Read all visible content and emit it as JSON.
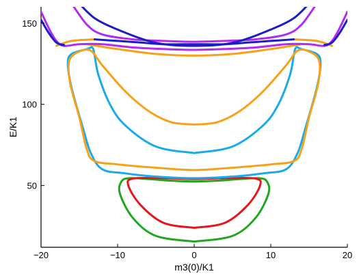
{
  "chart_data": {
    "type": "line",
    "xlabel": "m3(0)/K1",
    "ylabel": "E/K1",
    "xlim": [
      -20,
      20
    ],
    "ylim": [
      12,
      160
    ],
    "xticks": [
      -20,
      -10,
      0,
      10,
      20
    ],
    "yticks": [
      50,
      100,
      150
    ],
    "grid": false,
    "colors": {
      "green": "#1fa71f",
      "red": "#e8141c",
      "sky": "#18aaec",
      "orange": "#f7a11a",
      "violet": "#b12cf0",
      "navy": "#1d1dc8"
    },
    "series": [
      {
        "color_key": "green",
        "points": [
          [
            0,
            15.5
          ],
          [
            -5,
            19
          ],
          [
            -8,
            30
          ],
          [
            -9.7,
            45
          ],
          [
            -9.5,
            52.5
          ],
          [
            -8.5,
            54.5
          ],
          [
            -6,
            54
          ],
          [
            -3,
            53
          ],
          [
            0,
            52.5
          ],
          [
            3,
            53
          ],
          [
            6,
            54
          ],
          [
            8.5,
            54.5
          ],
          [
            9.5,
            52.5
          ],
          [
            9.7,
            45
          ],
          [
            8,
            30
          ],
          [
            5,
            19
          ],
          [
            0,
            15.5
          ]
        ]
      },
      {
        "color_key": "red",
        "points": [
          [
            0,
            24
          ],
          [
            -4,
            27
          ],
          [
            -7,
            38
          ],
          [
            -8.6,
            50
          ],
          [
            -8,
            54.3
          ],
          [
            -4,
            54.5
          ],
          [
            0,
            54
          ],
          [
            4,
            54.5
          ],
          [
            8,
            54.3
          ],
          [
            8.6,
            50
          ],
          [
            7,
            38
          ],
          [
            4,
            27
          ],
          [
            0,
            24
          ]
        ]
      },
      {
        "color_key": "sky",
        "points": [
          [
            0,
            70
          ],
          [
            -5,
            74
          ],
          [
            -9,
            87
          ],
          [
            -11,
            100
          ],
          [
            -12.5,
            118
          ],
          [
            -13,
            130
          ],
          [
            -13.3,
            135
          ],
          [
            -14,
            134
          ],
          [
            -16,
            131
          ],
          [
            -16.5,
            125
          ],
          [
            -16,
            110
          ],
          [
            -14.5,
            85
          ],
          [
            -13.5,
            70
          ],
          [
            -12,
            60
          ],
          [
            -9,
            57.5
          ],
          [
            -5,
            55.5
          ],
          [
            0,
            54.5
          ],
          [
            5,
            55.5
          ],
          [
            9,
            57.5
          ],
          [
            12,
            60
          ],
          [
            13.5,
            70
          ],
          [
            14.5,
            85
          ],
          [
            16,
            110
          ],
          [
            16.5,
            125
          ],
          [
            16,
            131
          ],
          [
            14,
            134
          ],
          [
            13.3,
            135
          ],
          [
            13,
            130
          ],
          [
            12.5,
            118
          ],
          [
            11,
            100
          ],
          [
            9,
            87
          ],
          [
            5,
            74
          ],
          [
            0,
            70
          ]
        ]
      },
      {
        "color_key": "orange",
        "points": [
          [
            0,
            87.5
          ],
          [
            -3,
            89
          ],
          [
            -6,
            96
          ],
          [
            -9,
            108
          ],
          [
            -12,
            124
          ],
          [
            -13.5,
            133
          ],
          [
            -15,
            132.5
          ],
          [
            -16.3,
            127
          ],
          [
            -16.2,
            113
          ],
          [
            -15,
            92
          ],
          [
            -14,
            72
          ],
          [
            -13,
            65
          ],
          [
            -10,
            63
          ],
          [
            -5,
            61
          ],
          [
            0,
            59.5
          ],
          [
            5,
            61
          ],
          [
            10,
            63
          ],
          [
            13,
            65
          ],
          [
            14,
            72
          ],
          [
            15,
            92
          ],
          [
            16.2,
            113
          ],
          [
            16.3,
            127
          ],
          [
            15,
            132.5
          ],
          [
            13.5,
            133
          ],
          [
            12,
            124
          ],
          [
            9,
            108
          ],
          [
            6,
            96
          ],
          [
            3,
            89
          ],
          [
            0,
            87.5
          ]
        ]
      },
      {
        "color_key": "orange",
        "points": [
          [
            -14,
            137
          ],
          [
            -10,
            134
          ],
          [
            -5,
            131
          ],
          [
            0,
            130
          ],
          [
            5,
            131
          ],
          [
            10,
            134
          ],
          [
            14,
            137
          ]
        ]
      },
      {
        "color_key": "orange",
        "points": [
          [
            -18,
            136
          ],
          [
            -16,
            139
          ],
          [
            -13,
            140
          ]
        ]
      },
      {
        "color_key": "orange",
        "points": [
          [
            13,
            140
          ],
          [
            16,
            139
          ],
          [
            18,
            136
          ]
        ]
      },
      {
        "color_key": "violet",
        "points": [
          [
            -20,
            157
          ],
          [
            -19,
            147
          ],
          [
            -18,
            139
          ],
          [
            -17,
            136
          ],
          [
            -15,
            137
          ],
          [
            -12,
            137
          ],
          [
            -8,
            135
          ],
          [
            -4,
            134
          ],
          [
            0,
            133.5
          ],
          [
            4,
            134
          ],
          [
            8,
            135
          ],
          [
            12,
            137
          ],
          [
            15,
            137
          ],
          [
            17,
            136
          ],
          [
            18,
            139
          ],
          [
            19,
            147
          ],
          [
            20,
            157
          ]
        ]
      },
      {
        "color_key": "violet",
        "points": [
          [
            -16,
            162
          ],
          [
            -14,
            149
          ],
          [
            -12,
            143
          ],
          [
            -8,
            140
          ],
          [
            -4,
            139
          ],
          [
            0,
            138.5
          ],
          [
            4,
            139
          ],
          [
            8,
            140
          ],
          [
            12,
            143
          ],
          [
            14,
            149
          ],
          [
            16,
            162
          ]
        ]
      },
      {
        "color_key": "navy",
        "points": [
          [
            -15,
            162
          ],
          [
            -13,
            153
          ],
          [
            -10,
            146
          ],
          [
            -6,
            139
          ],
          [
            -3,
            136.5
          ],
          [
            0,
            136
          ],
          [
            3,
            136.5
          ],
          [
            6,
            139
          ],
          [
            10,
            146
          ],
          [
            13,
            153
          ],
          [
            15,
            162
          ]
        ]
      },
      {
        "color_key": "navy",
        "points": [
          [
            -20,
            152
          ],
          [
            -19,
            144
          ],
          [
            -18,
            138
          ],
          [
            -17,
            136.5
          ]
        ]
      },
      {
        "color_key": "navy",
        "points": [
          [
            17,
            136.5
          ],
          [
            18,
            138
          ],
          [
            19,
            144
          ],
          [
            20,
            152
          ]
        ]
      },
      {
        "color_key": "navy",
        "points": [
          [
            -13,
            140
          ],
          [
            -10,
            139
          ],
          [
            -7,
            138
          ],
          [
            -4,
            137
          ],
          [
            0,
            137
          ],
          [
            4,
            137
          ],
          [
            7,
            138
          ],
          [
            10,
            139
          ],
          [
            13,
            140
          ]
        ]
      }
    ]
  }
}
